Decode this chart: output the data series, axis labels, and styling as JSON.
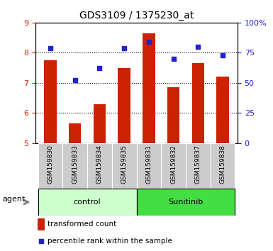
{
  "title": "GDS3109 / 1375230_at",
  "samples": [
    "GSM159830",
    "GSM159833",
    "GSM159834",
    "GSM159835",
    "GSM159831",
    "GSM159832",
    "GSM159837",
    "GSM159838"
  ],
  "transformed_count": [
    7.75,
    5.65,
    6.3,
    7.5,
    8.65,
    6.85,
    7.65,
    7.2
  ],
  "percentile_rank": [
    79,
    52,
    62,
    79,
    84,
    70,
    80,
    73
  ],
  "ylim_left": [
    5,
    9
  ],
  "ylim_right": [
    0,
    100
  ],
  "yticks_left": [
    5,
    6,
    7,
    8,
    9
  ],
  "yticks_right": [
    0,
    25,
    50,
    75,
    100
  ],
  "bar_color": "#cc2200",
  "dot_color": "#2222cc",
  "control_bg": "#ccffcc",
  "sunitinib_bg": "#44dd44",
  "sample_col_bg": "#cccccc",
  "bar_width": 0.5,
  "n_control": 4,
  "n_sunitinib": 4,
  "agent_label": "agent",
  "legend_bar_label": "transformed count",
  "legend_dot_label": "percentile rank within the sample"
}
